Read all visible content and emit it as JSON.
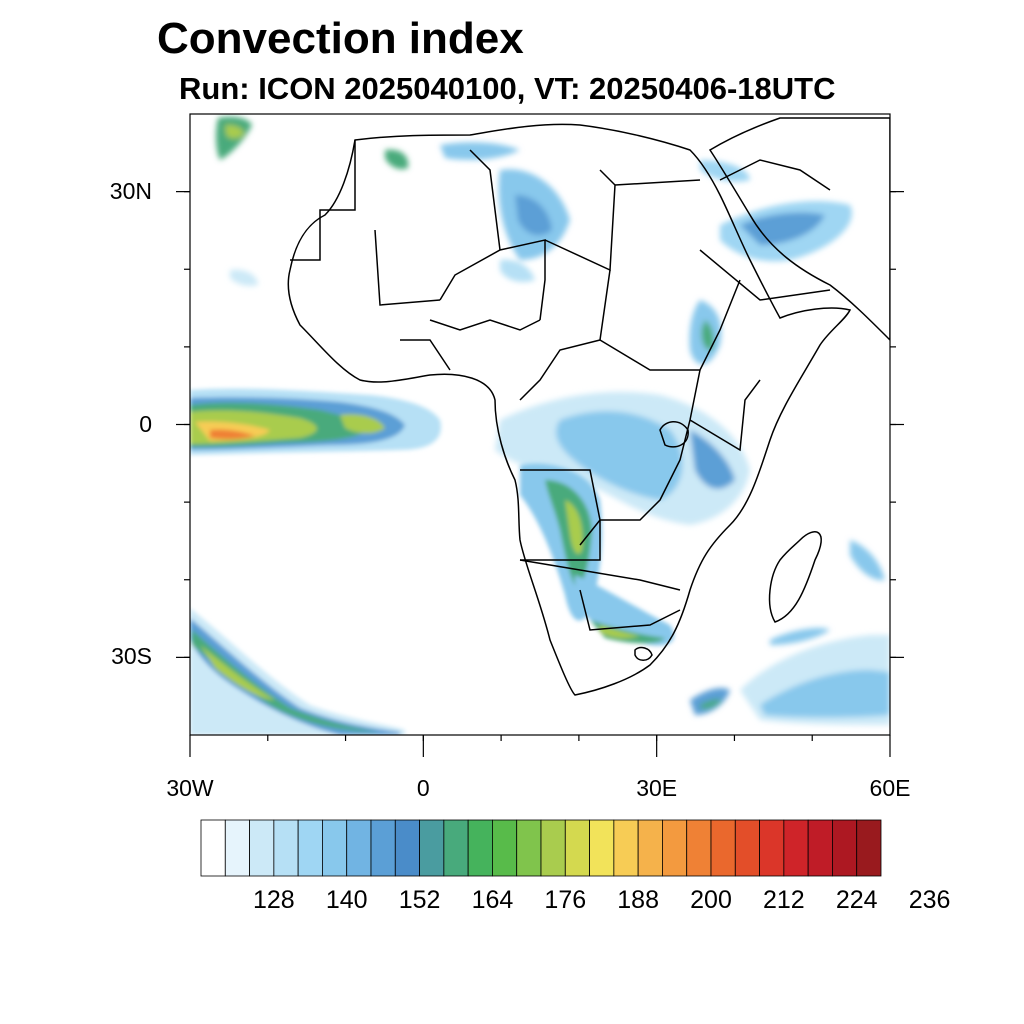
{
  "title": "Convection index",
  "subtitle": "Run: ICON 2025040100,  VT: 20250406-18UTC",
  "map": {
    "projection": "cylindrical-equidistant",
    "region": "Africa",
    "lon_range_deg": [
      -30,
      60
    ],
    "lat_range_deg": [
      -40,
      40
    ],
    "lat_ticks": [
      {
        "value": 30,
        "label": "30N"
      },
      {
        "value": 0,
        "label": "0"
      },
      {
        "value": -30,
        "label": "30S"
      }
    ],
    "lon_ticks": [
      {
        "value": -30,
        "label": "30W"
      },
      {
        "value": 0,
        "label": "0"
      },
      {
        "value": 30,
        "label": "30E"
      },
      {
        "value": 60,
        "label": "60E"
      }
    ],
    "field": "convection index",
    "features": [
      {
        "name": "equatorial-atlantic-band",
        "description": "strong convection band west of the Gulf of Guinea"
      },
      {
        "name": "central-africa-convection",
        "description": "widespread weak-moderate convection over Congo basin"
      },
      {
        "name": "angola-zambia-band",
        "description": "moderate convection from Angola to Botswana"
      },
      {
        "name": "south-atlantic-frontal-band",
        "description": "diagonal band south-west of Africa"
      },
      {
        "name": "indian-ocean-south",
        "description": "convection south-east of Madagascar"
      },
      {
        "name": "arabia-sahara",
        "description": "weak convection over Arabia and central Sahara"
      }
    ]
  },
  "colorbar": {
    "labels": [
      "128",
      "140",
      "152",
      "164",
      "176",
      "188",
      "200",
      "212",
      "224",
      "236"
    ],
    "colors": [
      "#ffffff",
      "#e6f4fc",
      "#cce9f7",
      "#b6e0f5",
      "#9fd6f3",
      "#88c8ec",
      "#71b4e3",
      "#5b9fd6",
      "#4a8cc9",
      "#4a9ca0",
      "#48aa7c",
      "#45b35c",
      "#58bb4a",
      "#80c44c",
      "#a9cc4e",
      "#d4d94f",
      "#f2e35a",
      "#f7cc55",
      "#f5b24b",
      "#f39a3f",
      "#ef8135",
      "#ea682d",
      "#e34e29",
      "#db3629",
      "#cf2429",
      "#bf1c27",
      "#ad1822",
      "#991a1e"
    ]
  }
}
